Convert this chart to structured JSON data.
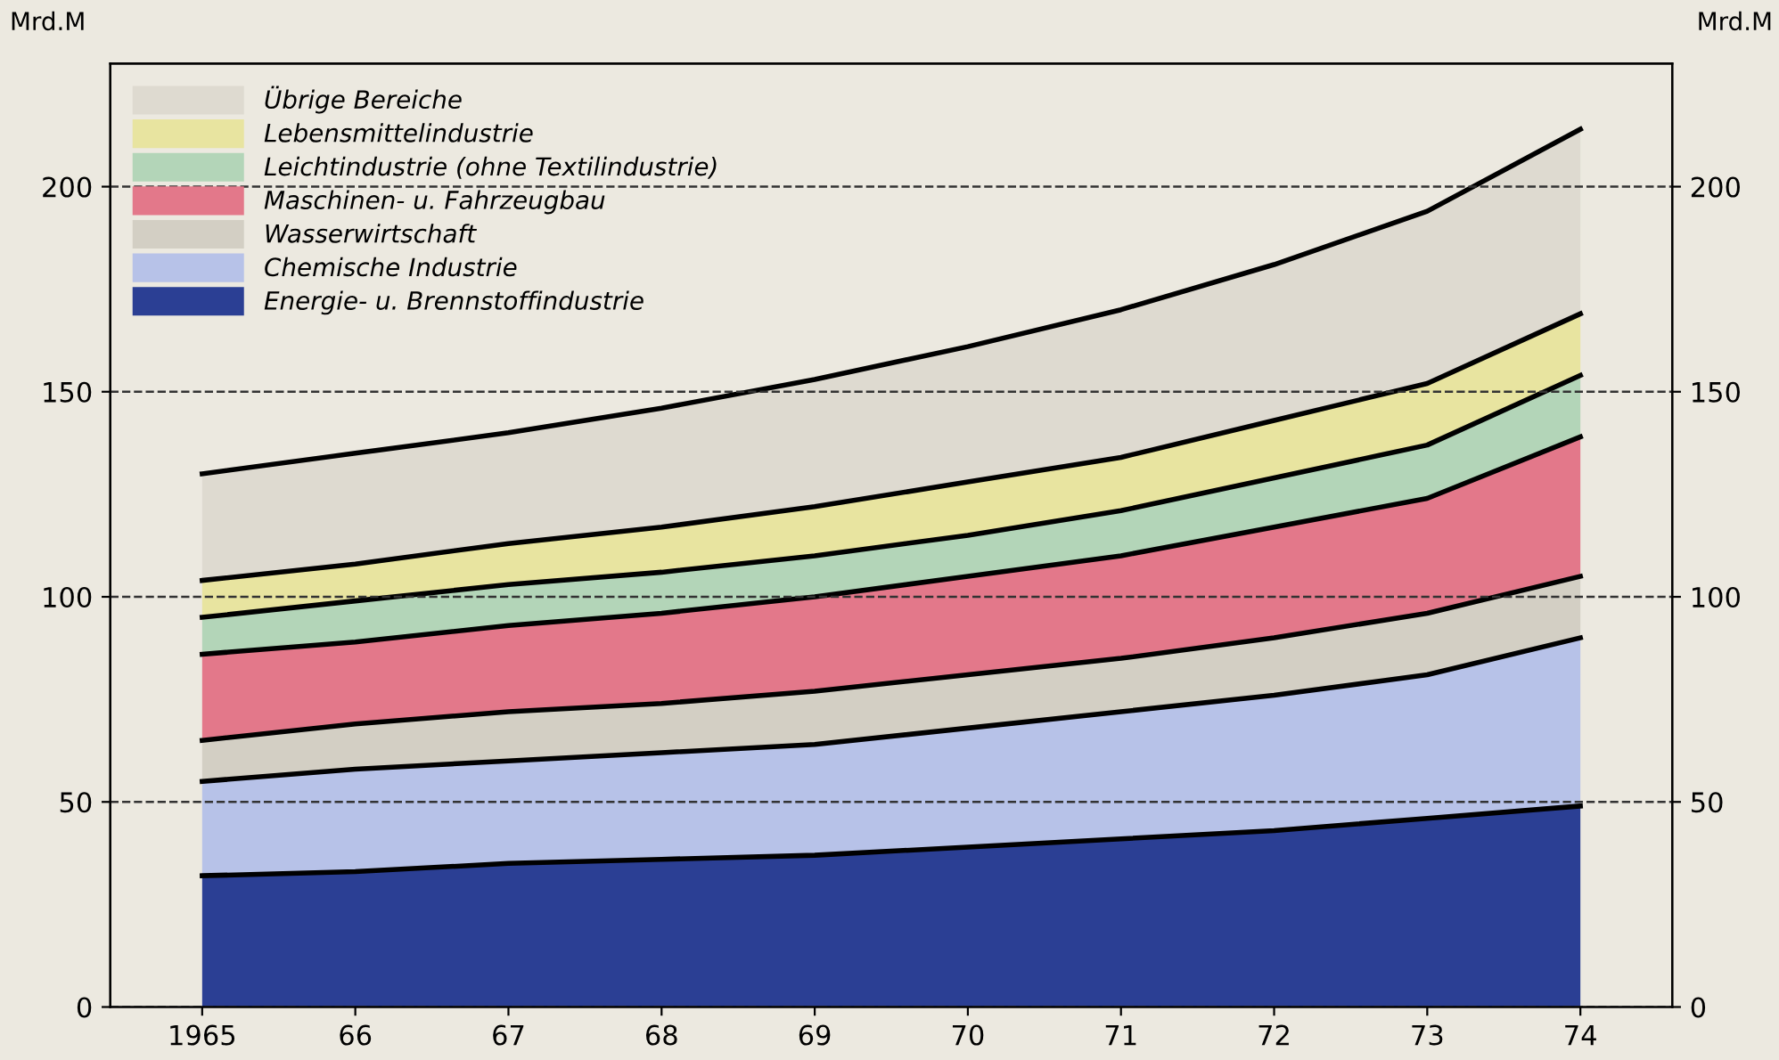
{
  "chart_data": {
    "type": "area",
    "stacked": true,
    "ylabel": "Mrd.M",
    "y2label": "Mrd.M",
    "categories": [
      "1965",
      "66",
      "67",
      "68",
      "69",
      "70",
      "71",
      "72",
      "73",
      "74"
    ],
    "series": [
      {
        "name": "Energie- u. Brennstoffindustrie",
        "color": "#2b3f94",
        "values": [
          32,
          33,
          35,
          36,
          37,
          39,
          41,
          43,
          46,
          49
        ]
      },
      {
        "name": "Chemische Industrie",
        "color": "#b7c2e8",
        "values": [
          23,
          25,
          25,
          26,
          27,
          29,
          31,
          33,
          35,
          41
        ]
      },
      {
        "name": "Wasserwirtschaft",
        "color": "#d3cfc4",
        "values": [
          10,
          11,
          12,
          12,
          13,
          13,
          13,
          14,
          15,
          15
        ]
      },
      {
        "name": "Maschinen- u. Fahrzeugbau",
        "color": "#e3788a",
        "values": [
          21,
          20,
          21,
          22,
          23,
          24,
          25,
          27,
          28,
          34
        ]
      },
      {
        "name": "Leichtindustrie (ohne Textilindustrie)",
        "color": "#b3d5b8",
        "values": [
          9,
          10,
          10,
          10,
          10,
          10,
          11,
          12,
          13,
          15
        ]
      },
      {
        "name": "Lebensmittelindustrie",
        "color": "#e8e4a0",
        "values": [
          9,
          9,
          10,
          11,
          12,
          13,
          13,
          14,
          15,
          15
        ]
      },
      {
        "name": "Übrige Bereiche",
        "color": "#dedad0",
        "values": [
          26,
          27,
          27,
          29,
          31,
          33,
          36,
          38,
          42,
          45
        ]
      }
    ],
    "ylim": [
      0,
      230
    ],
    "yticks": [
      0,
      50,
      100,
      150,
      200
    ],
    "y2lim": [
      0,
      230
    ],
    "y2ticks": [
      0,
      50,
      100,
      150,
      200
    ],
    "grid": "y",
    "line_style": "dashed",
    "legend": "top left"
  }
}
